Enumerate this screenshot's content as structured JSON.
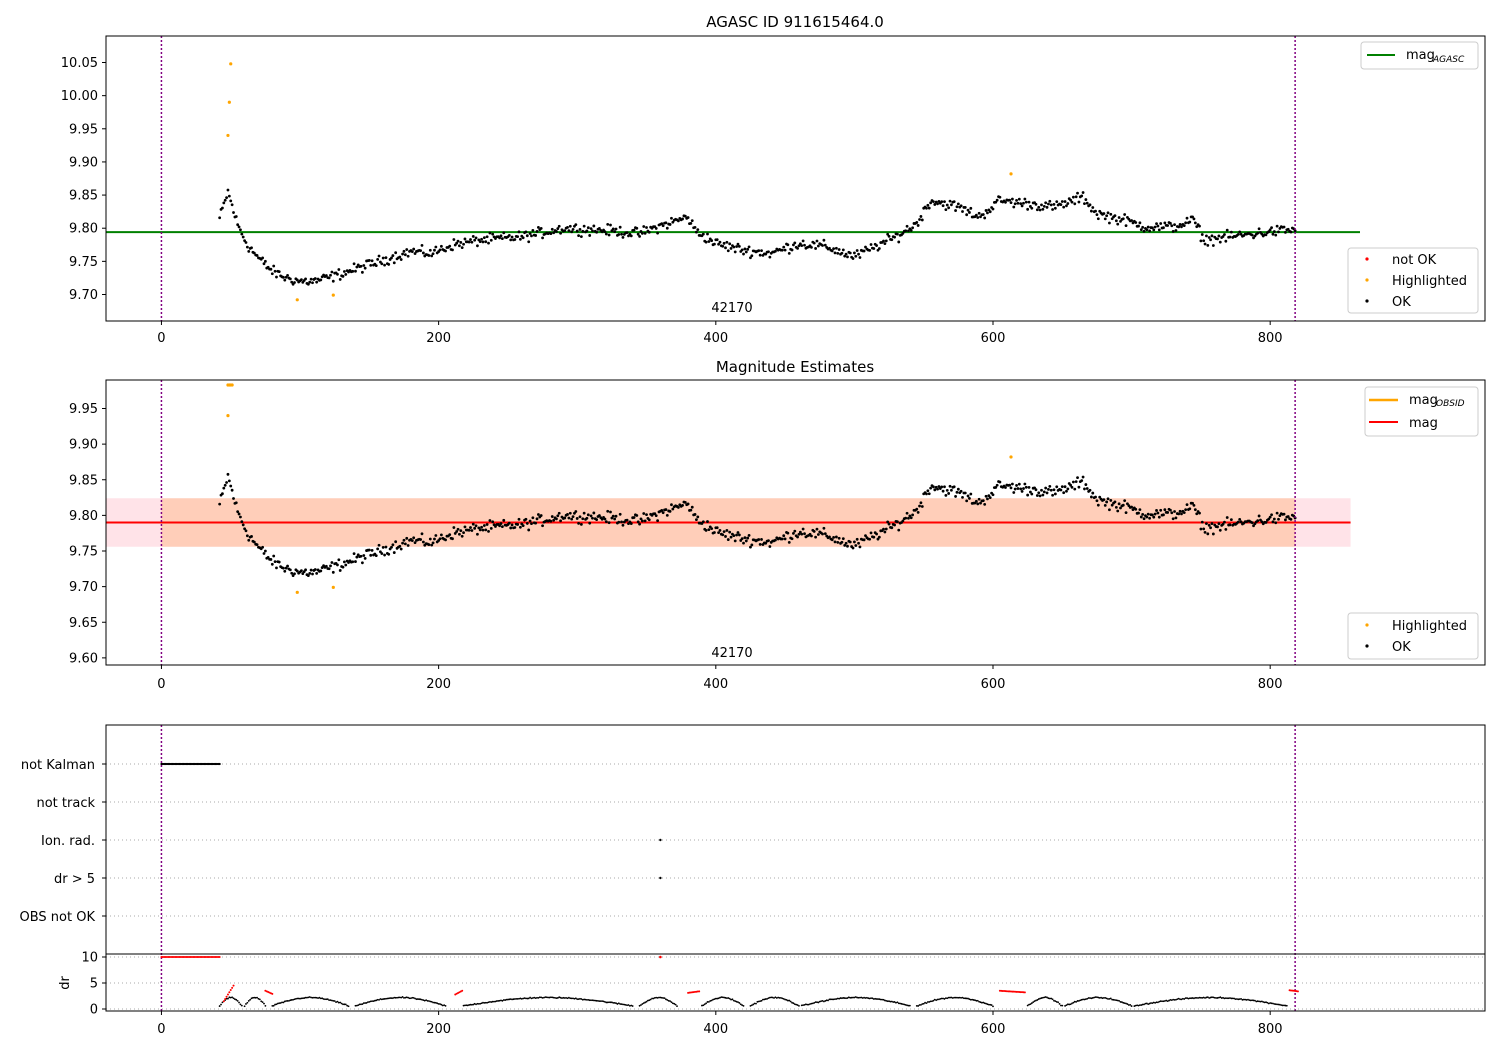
{
  "chart_data": [
    {
      "type": "scatter",
      "title": "AGASC ID 911615464.0",
      "xlim": [
        -40,
        955
      ],
      "ylim": [
        9.66,
        10.09
      ],
      "xticks": [
        0,
        200,
        400,
        600,
        800
      ],
      "xtick_labels": [
        "0",
        "200",
        "400",
        "600",
        "800"
      ],
      "yticks": [
        9.7,
        9.75,
        9.8,
        9.85,
        9.9,
        9.95,
        10.0,
        10.05
      ],
      "ytick_labels": [
        "9.70",
        "9.75",
        "9.80",
        "9.85",
        "9.90",
        "9.95",
        "10.00",
        "10.05"
      ],
      "vlines": [
        0,
        818
      ],
      "hline": {
        "y": 9.794,
        "label": "mag",
        "label_sub": "AGASC",
        "color": "#008000"
      },
      "series_anchors": [
        [
          42,
          9.815
        ],
        [
          48,
          9.855
        ],
        [
          55,
          9.805
        ],
        [
          62,
          9.775
        ],
        [
          70,
          9.755
        ],
        [
          80,
          9.735
        ],
        [
          90,
          9.725
        ],
        [
          100,
          9.72
        ],
        [
          110,
          9.72
        ],
        [
          120,
          9.725
        ],
        [
          135,
          9.735
        ],
        [
          150,
          9.745
        ],
        [
          165,
          9.755
        ],
        [
          180,
          9.765
        ],
        [
          195,
          9.762
        ],
        [
          210,
          9.775
        ],
        [
          230,
          9.782
        ],
        [
          260,
          9.787
        ],
        [
          290,
          9.8
        ],
        [
          320,
          9.797
        ],
        [
          345,
          9.792
        ],
        [
          365,
          9.807
        ],
        [
          380,
          9.817
        ],
        [
          385,
          9.797
        ],
        [
          400,
          9.777
        ],
        [
          420,
          9.767
        ],
        [
          440,
          9.762
        ],
        [
          460,
          9.777
        ],
        [
          480,
          9.772
        ],
        [
          500,
          9.757
        ],
        [
          515,
          9.772
        ],
        [
          530,
          9.787
        ],
        [
          545,
          9.807
        ],
        [
          555,
          9.842
        ],
        [
          575,
          9.832
        ],
        [
          590,
          9.817
        ],
        [
          605,
          9.842
        ],
        [
          625,
          9.837
        ],
        [
          645,
          9.832
        ],
        [
          665,
          9.847
        ],
        [
          675,
          9.822
        ],
        [
          695,
          9.812
        ],
        [
          710,
          9.802
        ],
        [
          730,
          9.802
        ],
        [
          745,
          9.812
        ],
        [
          752,
          9.782
        ],
        [
          770,
          9.787
        ],
        [
          790,
          9.792
        ],
        [
          810,
          9.797
        ],
        [
          818,
          9.797
        ]
      ],
      "series_noise": 0.012,
      "highlighted_points": [
        [
          48,
          9.94
        ],
        [
          49,
          9.99
        ],
        [
          50,
          10.048
        ],
        [
          98,
          9.692
        ],
        [
          124,
          9.699
        ],
        [
          613,
          9.882
        ]
      ],
      "legend_top": [
        {
          "label": "mag",
          "sub": "AGASC",
          "color": "#008000"
        }
      ],
      "legend_bottom": [
        {
          "label": "not OK",
          "color": "#ff0000"
        },
        {
          "label": "Highlighted",
          "color": "#ffa500"
        },
        {
          "label": "OK",
          "color": "#000000"
        }
      ],
      "annotation": "42170"
    },
    {
      "type": "scatter",
      "title": "Magnitude Estimates",
      "xlim": [
        -40,
        955
      ],
      "ylim": [
        9.59,
        9.99
      ],
      "xticks": [
        0,
        200,
        400,
        600,
        800
      ],
      "xtick_labels": [
        "0",
        "200",
        "400",
        "600",
        "800"
      ],
      "yticks": [
        9.6,
        9.65,
        9.7,
        9.75,
        9.8,
        9.85,
        9.9,
        9.95
      ],
      "ytick_labels": [
        "9.60",
        "9.65",
        "9.70",
        "9.75",
        "9.80",
        "9.85",
        "9.90",
        "9.95"
      ],
      "vlines": [
        0,
        818
      ],
      "mag_line": {
        "y": 9.79,
        "color": "#ff0000",
        "label": "mag"
      },
      "mag_band": {
        "y0": 9.756,
        "y1": 9.824,
        "x0": -40,
        "x1": 858
      },
      "obsid_band": {
        "y0": 9.756,
        "y1": 9.824,
        "x0": 0,
        "x1": 818
      },
      "highlighted_points": [
        [
          48,
          9.94
        ],
        [
          48,
          9.983
        ],
        [
          49,
          9.983
        ],
        [
          50,
          9.983
        ],
        [
          51,
          9.983
        ],
        [
          98,
          9.692
        ],
        [
          124,
          9.699
        ],
        [
          613,
          9.882
        ]
      ],
      "legend_top": [
        {
          "label": "mag",
          "sub": "OBSID",
          "color": "#ffa500"
        },
        {
          "label": "mag",
          "sub": "",
          "color": "#ff0000"
        }
      ],
      "legend_bottom": [
        {
          "label": "Highlighted",
          "color": "#ffa500"
        },
        {
          "label": "OK",
          "color": "#000000"
        }
      ],
      "annotation": "42170"
    },
    {
      "type": "scatter",
      "title": "",
      "xlim": [
        -40,
        955
      ],
      "categories": [
        "not Kalman",
        "not track",
        "Ion. rad.",
        "dr > 5",
        "OBS not OK"
      ],
      "flags": {
        "not Kalman": {
          "x_range": [
            0,
            42
          ]
        },
        "Ion. rad.": {
          "points": [
            360
          ]
        },
        "dr > 5": {
          "points": [
            360
          ]
        }
      }
    },
    {
      "type": "scatter",
      "title": "",
      "ylabel": "dr",
      "xlim": [
        -40,
        955
      ],
      "ylim": [
        -0.5,
        10.5
      ],
      "xticks": [
        0,
        200,
        400,
        600,
        800
      ],
      "xtick_labels": [
        "0",
        "200",
        "400",
        "600",
        "800"
      ],
      "yticks": [
        0,
        5,
        10
      ],
      "ytick_labels": [
        "0",
        "5",
        "10"
      ],
      "red_ranges": [
        [
          0,
          42,
          10,
          10
        ],
        [
          45,
          52,
          1.5,
          4.5
        ],
        [
          75,
          80,
          3.5,
          2.9
        ],
        [
          212,
          217,
          2.8,
          3.5
        ],
        [
          380,
          388,
          3.1,
          3.4
        ],
        [
          605,
          623,
          3.5,
          3.2
        ],
        [
          814,
          820,
          3.6,
          3.4
        ]
      ],
      "red_points": [
        [
          360,
          10
        ]
      ],
      "black_segments": [
        [
          42,
          58
        ],
        [
          60,
          75
        ],
        [
          80,
          135
        ],
        [
          140,
          205
        ],
        [
          218,
          340
        ],
        [
          345,
          372
        ],
        [
          390,
          420
        ],
        [
          425,
          460
        ],
        [
          462,
          540
        ],
        [
          545,
          600
        ],
        [
          625,
          650
        ],
        [
          652,
          700
        ],
        [
          702,
          812
        ]
      ]
    }
  ]
}
